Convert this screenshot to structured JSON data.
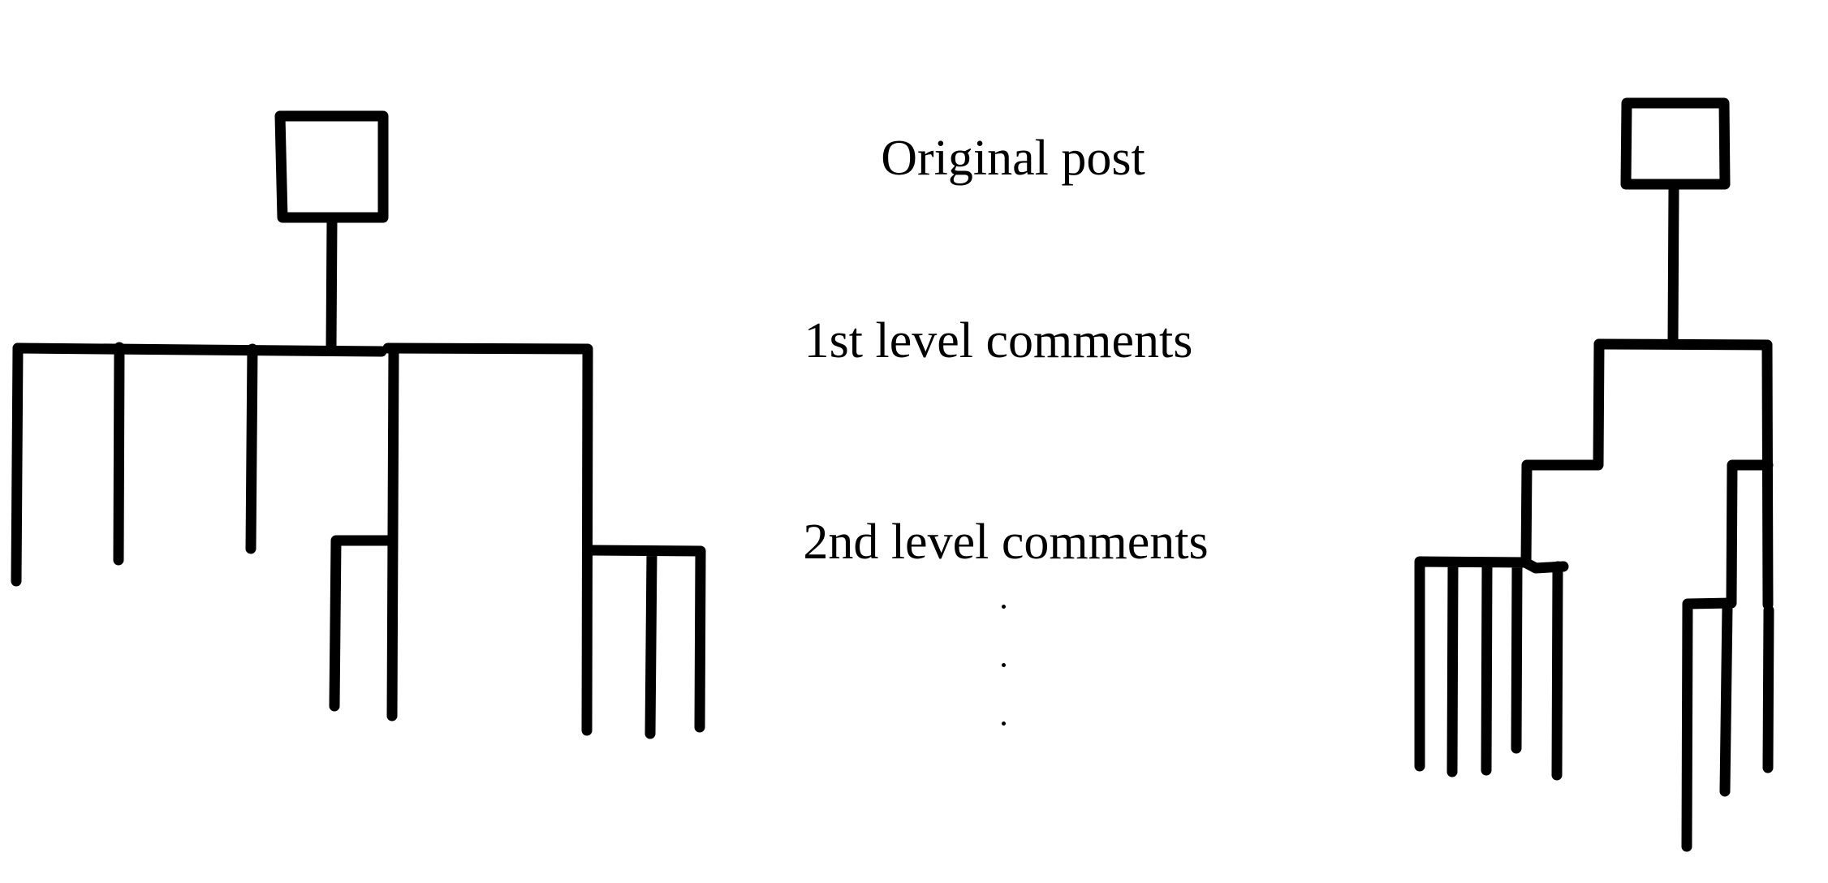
{
  "labels": {
    "original_post": "Original post",
    "first_level": "1st level comments",
    "second_level": "2nd level comments"
  },
  "colors": {
    "ink": "#000000",
    "background": "#ffffff"
  }
}
